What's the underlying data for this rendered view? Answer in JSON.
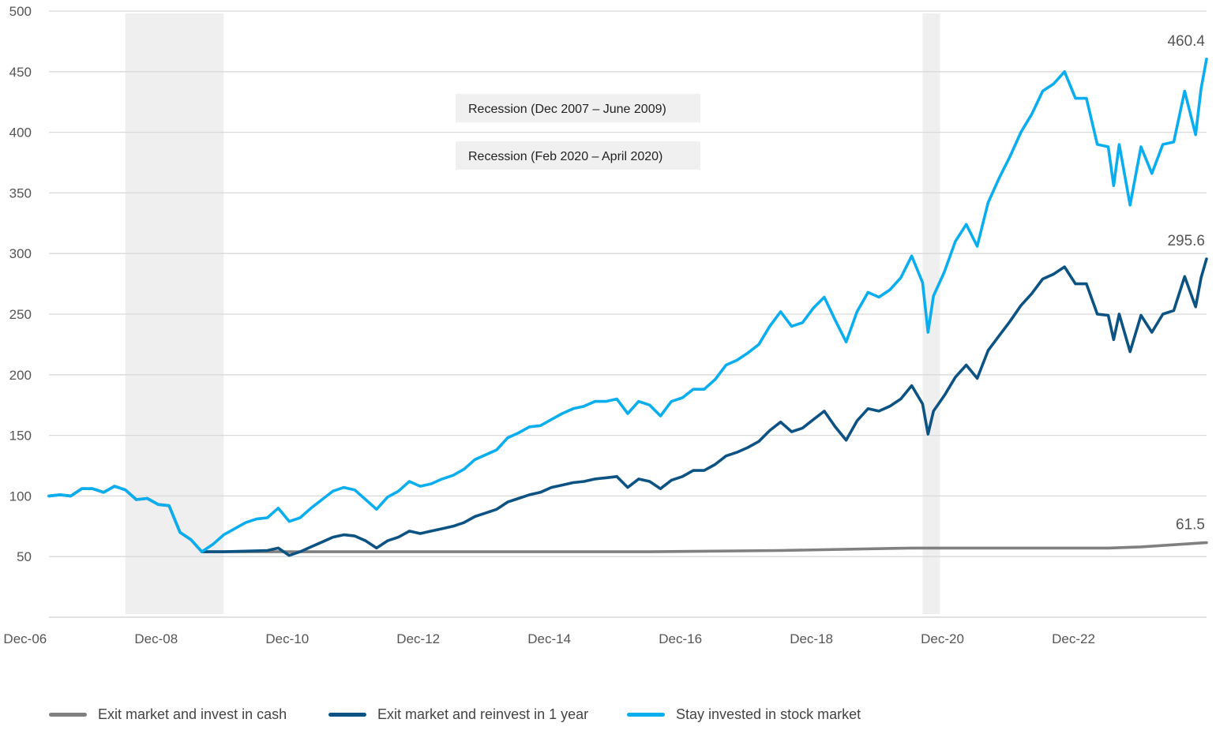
{
  "chart_data": {
    "type": "line",
    "title": "",
    "xlabel": "",
    "ylabel": "",
    "ylim": [
      0,
      500
    ],
    "yticks": [
      50,
      100,
      150,
      200,
      250,
      300,
      350,
      400,
      450,
      500
    ],
    "xticks": [
      {
        "label": "Dec-06",
        "x": "2006-12"
      },
      {
        "label": "Dec-08",
        "x": "2008-12"
      },
      {
        "label": "Dec-10",
        "x": "2010-12"
      },
      {
        "label": "Dec-12",
        "x": "2012-12"
      },
      {
        "label": "Dec-14",
        "x": "2014-12"
      },
      {
        "label": "Dec-16",
        "x": "2016-12"
      },
      {
        "label": "Dec-18",
        "x": "2018-12"
      },
      {
        "label": "Dec-20",
        "x": "2020-12"
      },
      {
        "label": "Dec-22",
        "x": "2022-12"
      }
    ],
    "xlim": [
      "2006-10",
      "2024-06"
    ],
    "grid": "horizontal",
    "legend_position": "bottom",
    "recessions": [
      {
        "label": "Recession (Dec 2007 – June 2009)",
        "start": "2007-12",
        "end": "2009-06"
      },
      {
        "label": "Recession (Feb 2020 – April 2020)",
        "start": "2020-02",
        "end": "2020-04"
      }
    ],
    "series": [
      {
        "name": "Stay invested in stock market",
        "color": "#0aaeef",
        "end_label": "460.4",
        "points": [
          [
            "2006-10",
            100
          ],
          [
            "2006-12",
            101
          ],
          [
            "2007-02",
            100
          ],
          [
            "2007-04",
            106
          ],
          [
            "2007-06",
            106
          ],
          [
            "2007-08",
            103
          ],
          [
            "2007-10",
            108
          ],
          [
            "2007-12",
            105
          ],
          [
            "2008-02",
            97
          ],
          [
            "2008-04",
            98
          ],
          [
            "2008-06",
            93
          ],
          [
            "2008-08",
            92
          ],
          [
            "2008-10",
            70
          ],
          [
            "2008-12",
            64
          ],
          [
            "2009-02",
            54
          ],
          [
            "2009-04",
            60
          ],
          [
            "2009-06",
            68
          ],
          [
            "2009-08",
            73
          ],
          [
            "2009-10",
            78
          ],
          [
            "2009-12",
            81
          ],
          [
            "2010-02",
            82
          ],
          [
            "2010-04",
            90
          ],
          [
            "2010-06",
            79
          ],
          [
            "2010-08",
            82
          ],
          [
            "2010-10",
            90
          ],
          [
            "2010-12",
            97
          ],
          [
            "2011-02",
            104
          ],
          [
            "2011-04",
            107
          ],
          [
            "2011-06",
            105
          ],
          [
            "2011-08",
            97
          ],
          [
            "2011-10",
            89
          ],
          [
            "2011-12",
            99
          ],
          [
            "2012-02",
            104
          ],
          [
            "2012-04",
            112
          ],
          [
            "2012-06",
            108
          ],
          [
            "2012-08",
            110
          ],
          [
            "2012-10",
            114
          ],
          [
            "2012-12",
            117
          ],
          [
            "2013-02",
            122
          ],
          [
            "2013-04",
            130
          ],
          [
            "2013-06",
            134
          ],
          [
            "2013-08",
            138
          ],
          [
            "2013-10",
            148
          ],
          [
            "2013-12",
            152
          ],
          [
            "2014-02",
            157
          ],
          [
            "2014-04",
            158
          ],
          [
            "2014-06",
            163
          ],
          [
            "2014-08",
            168
          ],
          [
            "2014-10",
            172
          ],
          [
            "2014-12",
            174
          ],
          [
            "2015-02",
            178
          ],
          [
            "2015-04",
            178
          ],
          [
            "2015-06",
            180
          ],
          [
            "2015-08",
            168
          ],
          [
            "2015-10",
            178
          ],
          [
            "2015-12",
            175
          ],
          [
            "2016-02",
            166
          ],
          [
            "2016-04",
            178
          ],
          [
            "2016-06",
            181
          ],
          [
            "2016-08",
            188
          ],
          [
            "2016-10",
            188
          ],
          [
            "2016-12",
            196
          ],
          [
            "2017-02",
            208
          ],
          [
            "2017-04",
            212
          ],
          [
            "2017-06",
            218
          ],
          [
            "2017-08",
            225
          ],
          [
            "2017-10",
            240
          ],
          [
            "2017-12",
            252
          ],
          [
            "2018-02",
            240
          ],
          [
            "2018-04",
            243
          ],
          [
            "2018-06",
            255
          ],
          [
            "2018-08",
            264
          ],
          [
            "2018-10",
            245
          ],
          [
            "2018-12",
            227
          ],
          [
            "2019-02",
            252
          ],
          [
            "2019-04",
            268
          ],
          [
            "2019-06",
            264
          ],
          [
            "2019-08",
            270
          ],
          [
            "2019-10",
            280
          ],
          [
            "2019-12",
            298
          ],
          [
            "2020-02",
            276
          ],
          [
            "2020-03",
            235
          ],
          [
            "2020-04",
            265
          ],
          [
            "2020-06",
            285
          ],
          [
            "2020-08",
            310
          ],
          [
            "2020-10",
            324
          ],
          [
            "2020-12",
            306
          ],
          [
            "2021-02",
            342
          ],
          [
            "2021-04",
            362
          ],
          [
            "2021-06",
            380
          ],
          [
            "2021-08",
            400
          ],
          [
            "2021-10",
            415
          ],
          [
            "2021-12",
            434
          ],
          [
            "2022-02",
            440
          ],
          [
            "2022-04",
            450
          ],
          [
            "2022-06",
            428
          ],
          [
            "2022-08",
            428
          ],
          [
            "2022-10",
            390
          ],
          [
            "2022-12",
            388
          ],
          [
            "2023-01",
            356
          ],
          [
            "2023-02",
            390
          ],
          [
            "2023-04",
            340
          ],
          [
            "2023-06",
            388
          ],
          [
            "2023-08",
            366
          ],
          [
            "2023-10",
            390
          ],
          [
            "2023-12",
            392
          ],
          [
            "2024-02",
            434
          ],
          [
            "2024-04",
            398
          ],
          [
            "2024-05",
            436
          ],
          [
            "2024-06",
            460.4
          ]
        ]
      },
      {
        "name": "Exit market and reinvest in 1 year",
        "color": "#0c5384",
        "end_label": "295.6",
        "points": [
          [
            "2006-10",
            100
          ],
          [
            "2006-12",
            101
          ],
          [
            "2007-02",
            100
          ],
          [
            "2007-04",
            106
          ],
          [
            "2007-06",
            106
          ],
          [
            "2007-08",
            103
          ],
          [
            "2007-10",
            108
          ],
          [
            "2007-12",
            105
          ],
          [
            "2008-02",
            97
          ],
          [
            "2008-04",
            98
          ],
          [
            "2008-06",
            93
          ],
          [
            "2008-08",
            92
          ],
          [
            "2008-10",
            70
          ],
          [
            "2008-12",
            64
          ],
          [
            "2009-02",
            54
          ],
          [
            "2009-06",
            54
          ],
          [
            "2010-02",
            55
          ],
          [
            "2010-04",
            57
          ],
          [
            "2010-06",
            51
          ],
          [
            "2010-08",
            54
          ],
          [
            "2010-10",
            58
          ],
          [
            "2010-12",
            62
          ],
          [
            "2011-02",
            66
          ],
          [
            "2011-04",
            68
          ],
          [
            "2011-06",
            67
          ],
          [
            "2011-08",
            63
          ],
          [
            "2011-10",
            57
          ],
          [
            "2011-12",
            63
          ],
          [
            "2012-02",
            66
          ],
          [
            "2012-04",
            71
          ],
          [
            "2012-06",
            69
          ],
          [
            "2012-08",
            71
          ],
          [
            "2012-10",
            73
          ],
          [
            "2012-12",
            75
          ],
          [
            "2013-02",
            78
          ],
          [
            "2013-04",
            83
          ],
          [
            "2013-06",
            86
          ],
          [
            "2013-08",
            89
          ],
          [
            "2013-10",
            95
          ],
          [
            "2013-12",
            98
          ],
          [
            "2014-02",
            101
          ],
          [
            "2014-04",
            103
          ],
          [
            "2014-06",
            107
          ],
          [
            "2014-08",
            109
          ],
          [
            "2014-10",
            111
          ],
          [
            "2014-12",
            112
          ],
          [
            "2015-02",
            114
          ],
          [
            "2015-04",
            115
          ],
          [
            "2015-06",
            116
          ],
          [
            "2015-08",
            107
          ],
          [
            "2015-10",
            114
          ],
          [
            "2015-12",
            112
          ],
          [
            "2016-02",
            106
          ],
          [
            "2016-04",
            113
          ],
          [
            "2016-06",
            116
          ],
          [
            "2016-08",
            121
          ],
          [
            "2016-10",
            121
          ],
          [
            "2016-12",
            126
          ],
          [
            "2017-02",
            133
          ],
          [
            "2017-04",
            136
          ],
          [
            "2017-06",
            140
          ],
          [
            "2017-08",
            145
          ],
          [
            "2017-10",
            154
          ],
          [
            "2017-12",
            161
          ],
          [
            "2018-02",
            153
          ],
          [
            "2018-04",
            156
          ],
          [
            "2018-06",
            163
          ],
          [
            "2018-08",
            170
          ],
          [
            "2018-10",
            157
          ],
          [
            "2018-12",
            146
          ],
          [
            "2019-02",
            162
          ],
          [
            "2019-04",
            172
          ],
          [
            "2019-06",
            170
          ],
          [
            "2019-08",
            174
          ],
          [
            "2019-10",
            180
          ],
          [
            "2019-12",
            191
          ],
          [
            "2020-02",
            176
          ],
          [
            "2020-03",
            151
          ],
          [
            "2020-04",
            170
          ],
          [
            "2020-06",
            183
          ],
          [
            "2020-08",
            198
          ],
          [
            "2020-10",
            208
          ],
          [
            "2020-12",
            197
          ],
          [
            "2021-02",
            220
          ],
          [
            "2021-04",
            232
          ],
          [
            "2021-06",
            244
          ],
          [
            "2021-08",
            257
          ],
          [
            "2021-10",
            267
          ],
          [
            "2021-12",
            279
          ],
          [
            "2022-02",
            283
          ],
          [
            "2022-04",
            289
          ],
          [
            "2022-06",
            275
          ],
          [
            "2022-08",
            275
          ],
          [
            "2022-10",
            250
          ],
          [
            "2022-12",
            249
          ],
          [
            "2023-01",
            229
          ],
          [
            "2023-02",
            250
          ],
          [
            "2023-04",
            219
          ],
          [
            "2023-06",
            249
          ],
          [
            "2023-08",
            235
          ],
          [
            "2023-10",
            250
          ],
          [
            "2023-12",
            253
          ],
          [
            "2024-02",
            281
          ],
          [
            "2024-04",
            256
          ],
          [
            "2024-05",
            280
          ],
          [
            "2024-06",
            295.6
          ]
        ]
      },
      {
        "name": "Exit market and invest in cash",
        "color": "#808080",
        "end_label": "61.5",
        "points": [
          [
            "2009-02",
            54
          ],
          [
            "2011-12",
            54
          ],
          [
            "2015-12",
            54
          ],
          [
            "2017-12",
            55
          ],
          [
            "2019-12",
            57
          ],
          [
            "2022-12",
            57
          ],
          [
            "2023-06",
            58
          ],
          [
            "2024-06",
            61.5
          ]
        ]
      }
    ]
  }
}
